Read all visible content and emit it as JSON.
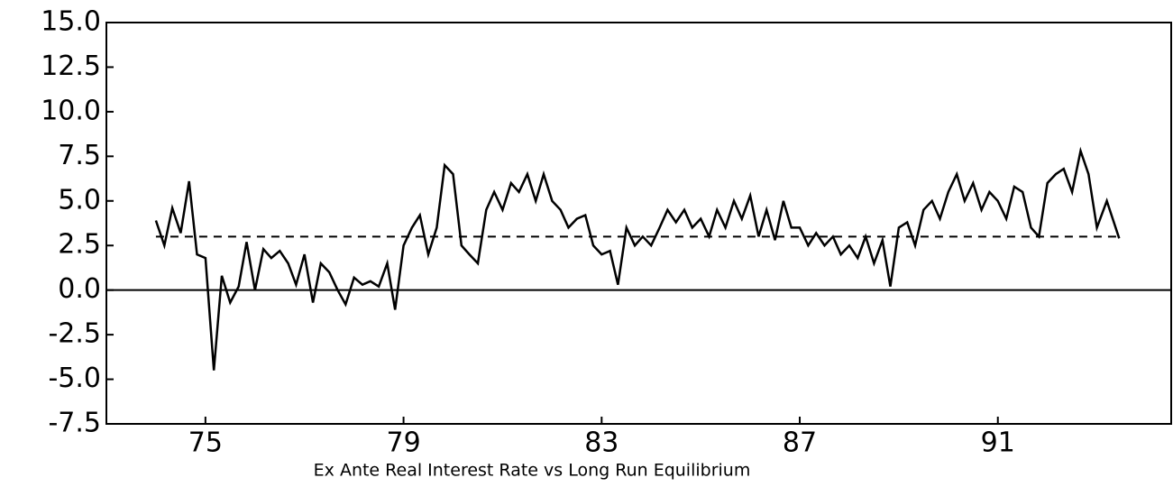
{
  "chart_data": {
    "type": "line",
    "xlabel": "Ex Ante Real Interest Rate vs Long Run Equilibrium",
    "xlim": [
      73,
      94.5
    ],
    "xticks": [
      75,
      79,
      83,
      87,
      91
    ],
    "ylim": [
      -7.5,
      15
    ],
    "yticks": [
      {
        "value": -7.5,
        "label": "-7.5"
      },
      {
        "value": -5,
        "label": "-5.0"
      },
      {
        "value": -2.5,
        "label": "-2.5"
      },
      {
        "value": 0,
        "label": "0.0"
      },
      {
        "value": 2.5,
        "label": "2.5"
      },
      {
        "value": 5,
        "label": "5.0"
      },
      {
        "value": 7.5,
        "label": "7.5"
      },
      {
        "value": 10,
        "label": "10.0"
      },
      {
        "value": 12.5,
        "label": "12.5"
      },
      {
        "value": 15,
        "label": "15.0"
      }
    ],
    "zero_line": true,
    "reference_line": {
      "y": 3.0,
      "x": [
        74,
        93.45
      ],
      "dashed": true,
      "color": "#000000"
    },
    "series": [
      {
        "color": "#000000",
        "x": [
          74.0,
          74.17,
          74.33,
          74.5,
          74.67,
          74.83,
          75.0,
          75.17,
          75.33,
          75.5,
          75.67,
          75.83,
          76.0,
          76.17,
          76.33,
          76.5,
          76.67,
          76.83,
          77.0,
          77.17,
          77.33,
          77.5,
          77.67,
          77.83,
          78.0,
          78.17,
          78.33,
          78.5,
          78.67,
          78.83,
          79.0,
          79.17,
          79.33,
          79.5,
          79.67,
          79.83,
          80.0,
          80.17,
          80.33,
          80.5,
          80.67,
          80.83,
          81.0,
          81.17,
          81.33,
          81.5,
          81.67,
          81.83,
          82.0,
          82.17,
          82.33,
          82.5,
          82.67,
          82.83,
          83.0,
          83.17,
          83.33,
          83.5,
          83.67,
          83.83,
          84.0,
          84.17,
          84.33,
          84.5,
          84.67,
          84.83,
          85.0,
          85.17,
          85.33,
          85.5,
          85.67,
          85.83,
          86.0,
          86.17,
          86.33,
          86.5,
          86.67,
          86.83,
          87.0,
          87.17,
          87.33,
          87.5,
          87.67,
          87.83,
          88.0,
          88.17,
          88.33,
          88.5,
          88.67,
          88.83,
          89.0,
          89.17,
          89.33,
          89.5,
          89.67,
          89.83,
          90.0,
          90.17,
          90.33,
          90.5,
          90.67,
          90.83,
          91.0,
          91.17,
          91.33,
          91.5,
          91.67,
          91.83,
          92.0,
          92.17,
          92.33,
          92.5,
          92.67,
          92.83,
          93.0,
          93.2,
          93.45
        ],
        "values": [
          3.9,
          2.5,
          4.6,
          3.2,
          6.1,
          2.0,
          1.8,
          -4.5,
          0.8,
          -0.7,
          0.2,
          2.7,
          0.0,
          2.3,
          1.8,
          2.2,
          1.5,
          0.3,
          2.0,
          -0.7,
          1.5,
          1.0,
          0.0,
          -0.8,
          0.7,
          0.3,
          0.5,
          0.2,
          1.5,
          -1.1,
          2.5,
          3.5,
          4.2,
          2.0,
          3.5,
          7.0,
          6.5,
          2.5,
          2.0,
          1.5,
          4.5,
          5.5,
          4.5,
          6.0,
          5.5,
          6.5,
          5.0,
          6.5,
          5.0,
          4.5,
          3.5,
          4.0,
          4.2,
          2.5,
          2.0,
          2.2,
          0.3,
          3.5,
          2.5,
          3.0,
          2.5,
          3.5,
          4.5,
          3.8,
          4.5,
          3.5,
          4.0,
          3.0,
          4.5,
          3.5,
          5.0,
          4.0,
          5.3,
          3.0,
          4.5,
          2.8,
          5.0,
          3.5,
          3.5,
          2.5,
          3.2,
          2.5,
          3.0,
          2.0,
          2.5,
          1.8,
          3.0,
          1.5,
          2.8,
          0.2,
          3.5,
          3.8,
          2.5,
          4.5,
          5.0,
          4.0,
          5.5,
          6.5,
          5.0,
          6.0,
          4.5,
          5.5,
          5.0,
          4.0,
          5.8,
          5.5,
          3.5,
          3.0,
          6.0,
          6.5,
          6.8,
          5.5,
          7.8,
          6.5,
          3.5,
          5.0,
          2.9
        ]
      }
    ]
  }
}
